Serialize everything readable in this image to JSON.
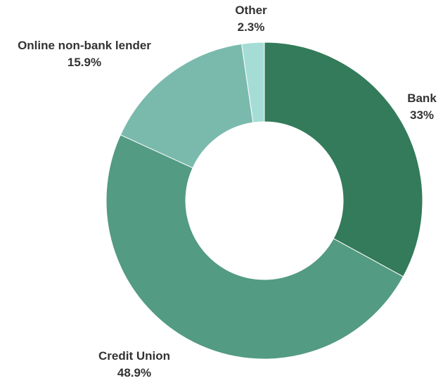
{
  "chart_data": {
    "type": "pie",
    "variant": "donut",
    "title": "",
    "slices": [
      {
        "label": "Bank",
        "value": 33,
        "value_label": "33%",
        "color": "#337b5a"
      },
      {
        "label": "Credit Union",
        "value": 48.9,
        "value_label": "48.9%",
        "color": "#539b82"
      },
      {
        "label": "Online non-bank lender",
        "value": 15.9,
        "value_label": "15.9%",
        "color": "#7abaad"
      },
      {
        "label": "Other",
        "value": 2.3,
        "value_label": "2.3%",
        "color": "#a5ddd6"
      }
    ],
    "legend": "none",
    "start": "top",
    "direction": "clockwise"
  }
}
